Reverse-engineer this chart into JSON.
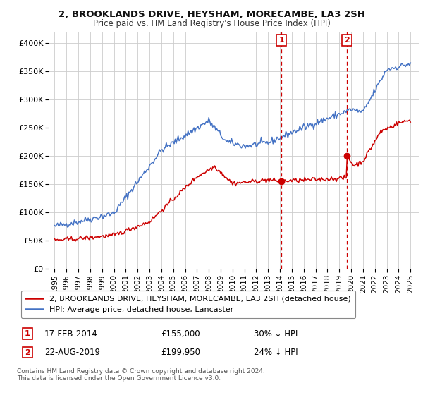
{
  "title": "2, BROOKLANDS DRIVE, HEYSHAM, MORECAMBE, LA3 2SH",
  "subtitle": "Price paid vs. HM Land Registry's House Price Index (HPI)",
  "legend_line1": "2, BROOKLANDS DRIVE, HEYSHAM, MORECAMBE, LA3 2SH (detached house)",
  "legend_line2": "HPI: Average price, detached house, Lancaster",
  "ann1_label": "1",
  "ann1_date": "17-FEB-2014",
  "ann1_price": "£155,000",
  "ann1_pct": "30% ↓ HPI",
  "ann1_x": 2014.12,
  "ann1_y": 155000,
  "ann2_label": "2",
  "ann2_date": "22-AUG-2019",
  "ann2_price": "£199,950",
  "ann2_pct": "24% ↓ HPI",
  "ann2_x": 2019.64,
  "ann2_y": 199950,
  "footer": "Contains HM Land Registry data © Crown copyright and database right 2024.\nThis data is licensed under the Open Government Licence v3.0.",
  "hpi_color": "#4472c4",
  "price_color": "#cc0000",
  "annotation_color": "#cc0000",
  "background_color": "#ffffff",
  "grid_color": "#cccccc",
  "ylim": [
    0,
    420000
  ],
  "yticks": [
    0,
    50000,
    100000,
    150000,
    200000,
    250000,
    300000,
    350000,
    400000
  ],
  "ytick_labels": [
    "£0",
    "£50K",
    "£100K",
    "£150K",
    "£200K",
    "£250K",
    "£300K",
    "£350K",
    "£400K"
  ],
  "xlim_min": 1994.5,
  "xlim_max": 2025.7
}
